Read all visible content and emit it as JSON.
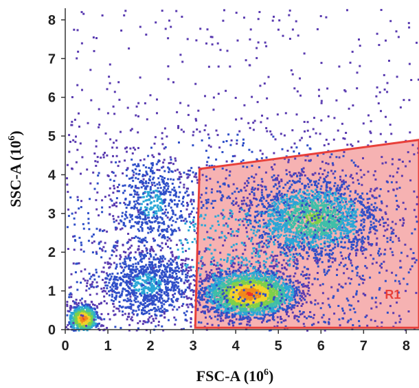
{
  "chart_data": {
    "type": "scatter",
    "subtype": "flow-cytometry density plot",
    "xlabel": "FSC-A (10",
    "xlabel_sup": "6",
    "xlabel_close": ")",
    "ylabel": "SSC-A (10",
    "ylabel_sup": "6",
    "ylabel_close": ")",
    "xlim": [
      0,
      8.3
    ],
    "ylim": [
      0,
      8.3
    ],
    "x_ticks": [
      "0",
      "1",
      "2",
      "3",
      "4",
      "5",
      "6",
      "7",
      "8"
    ],
    "y_ticks": [
      "0",
      "1",
      "2",
      "3",
      "4",
      "5",
      "6",
      "7",
      "8"
    ],
    "populations": [
      {
        "cx": 0.4,
        "cy": 0.3,
        "sx": 0.18,
        "sy": 0.18,
        "n": 650,
        "peak": "high"
      },
      {
        "cx": 1.9,
        "cy": 1.2,
        "sx": 0.55,
        "sy": 0.45,
        "n": 900,
        "peak": "low"
      },
      {
        "cx": 2.0,
        "cy": 3.3,
        "sx": 0.45,
        "sy": 0.6,
        "n": 500,
        "peak": "low"
      },
      {
        "cx": 4.3,
        "cy": 0.95,
        "sx": 0.55,
        "sy": 0.3,
        "n": 2200,
        "peak": "high"
      },
      {
        "cx": 5.8,
        "cy": 2.9,
        "sx": 0.75,
        "sy": 0.5,
        "n": 1700,
        "peak": "mid"
      },
      {
        "cx": 4.0,
        "cy": 2.2,
        "sx": 2.5,
        "sy": 1.6,
        "n": 1500,
        "peak": "low"
      }
    ],
    "gate": {
      "name": "R1",
      "vertices": [
        [
          3.05,
          0.05
        ],
        [
          3.15,
          4.15
        ],
        [
          8.3,
          4.9
        ],
        [
          8.3,
          0.05
        ]
      ],
      "label_pos": [
        7.5,
        0.8
      ],
      "fill": "#f4a4a4",
      "stroke": "#e8403a",
      "label_color": "#e8403a"
    },
    "colors": {
      "density_scale": [
        "#5a3bb0",
        "#2f4fc8",
        "#2aa6d6",
        "#3fbfa8",
        "#7fd04a",
        "#f2d22a",
        "#f08a1c",
        "#e8352a"
      ]
    },
    "grid": false
  }
}
